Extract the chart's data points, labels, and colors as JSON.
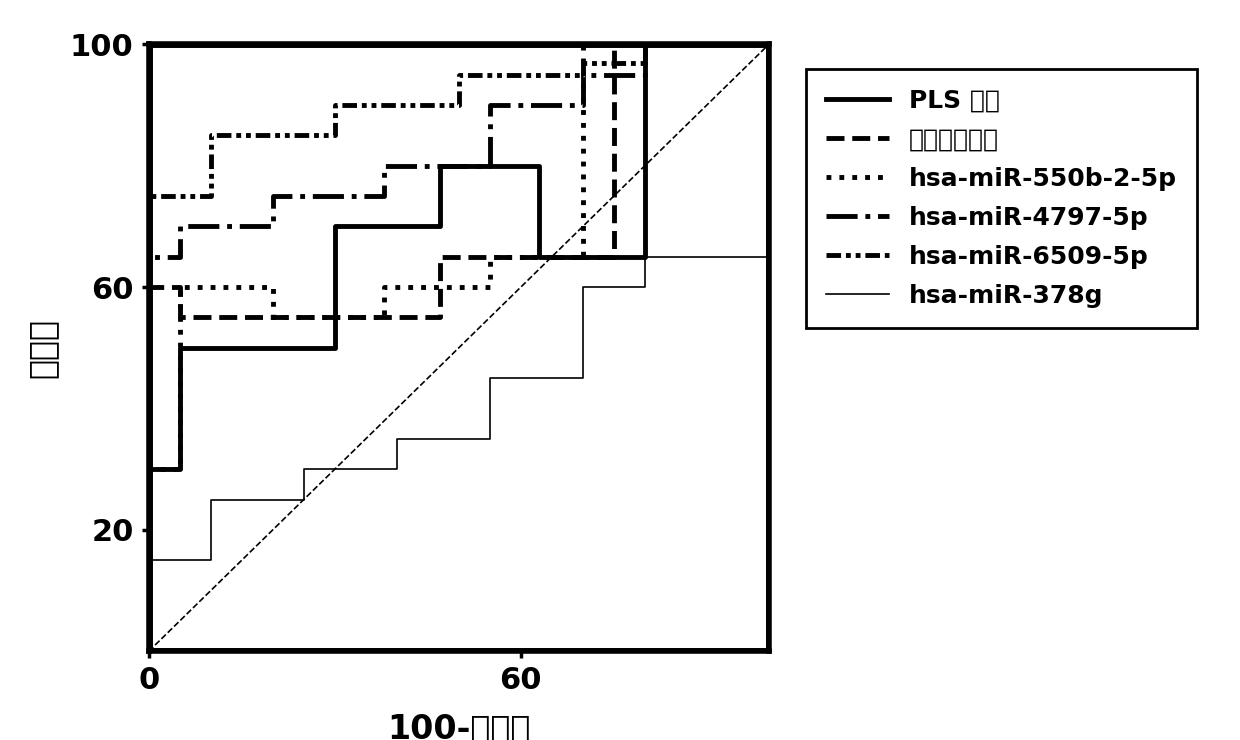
{
  "title": "",
  "xlabel": "100-特异性",
  "ylabel": "敏感性",
  "xlim": [
    0,
    100
  ],
  "ylim": [
    0,
    100
  ],
  "xticks": [
    0,
    60
  ],
  "yticks": [
    20,
    60,
    100
  ],
  "background_color": "#ffffff",
  "diagonal": {
    "x": [
      0,
      100
    ],
    "y": [
      0,
      100
    ],
    "linestyle": "--",
    "color": "black",
    "linewidth": 1.2
  },
  "curves": [
    {
      "label": "PLS 模型",
      "linestyle": "solid",
      "linewidth": 3.5,
      "color": "black",
      "x": [
        0,
        0,
        5,
        5,
        30,
        30,
        47,
        47,
        63,
        63,
        80,
        80,
        100
      ],
      "y": [
        0,
        30,
        30,
        50,
        50,
        70,
        70,
        80,
        80,
        65,
        65,
        100,
        100
      ]
    },
    {
      "label": "表达量平均值",
      "linestyle": "dashed",
      "linewidth": 3.5,
      "color": "black",
      "x": [
        0,
        0,
        5,
        5,
        30,
        30,
        47,
        47,
        75,
        75,
        100
      ],
      "y": [
        0,
        60,
        60,
        55,
        55,
        55,
        55,
        65,
        65,
        100,
        100
      ]
    },
    {
      "label": "hsa-miR-550b-2-5p",
      "linestyle": "dotted",
      "linewidth": 3.5,
      "color": "black",
      "x": [
        0,
        0,
        5,
        5,
        20,
        20,
        38,
        38,
        55,
        55,
        70,
        70,
        100
      ],
      "y": [
        0,
        30,
        30,
        60,
        60,
        55,
        55,
        60,
        60,
        65,
        65,
        100,
        100
      ]
    },
    {
      "label": "hsa-miR-4797-5p",
      "linestyle": "dashdot",
      "linewidth": 3.5,
      "color": "black",
      "x": [
        0,
        0,
        5,
        5,
        20,
        20,
        38,
        38,
        55,
        55,
        70,
        70,
        80,
        80,
        100
      ],
      "y": [
        0,
        65,
        65,
        70,
        70,
        75,
        75,
        80,
        80,
        90,
        90,
        95,
        95,
        100,
        100
      ]
    },
    {
      "label": "hsa-miR-6509-5p",
      "linestyle": "densely dashdotdotted",
      "linewidth": 3.5,
      "color": "black",
      "x": [
        0,
        0,
        10,
        10,
        30,
        30,
        50,
        50,
        70,
        70,
        80,
        80,
        100
      ],
      "y": [
        0,
        75,
        75,
        85,
        85,
        90,
        90,
        95,
        95,
        97,
        97,
        100,
        100
      ]
    },
    {
      "label": "hsa-miR-378g",
      "linestyle": "solid",
      "linewidth": 1.2,
      "color": "black",
      "x": [
        0,
        0,
        10,
        10,
        25,
        25,
        40,
        40,
        55,
        55,
        70,
        70,
        80,
        80,
        100
      ],
      "y": [
        0,
        15,
        15,
        25,
        25,
        30,
        30,
        35,
        35,
        45,
        45,
        60,
        60,
        65,
        65
      ]
    }
  ],
  "legend_labels": [
    "PLS 模型",
    "表达量平均值",
    "hsa-miR-550b-2-5p",
    "hsa-miR-4797-5p",
    "hsa-miR-6509-5p",
    "hsa-miR-378g"
  ],
  "font_size_ticks": 22,
  "font_size_labels": 24,
  "font_size_legend": 18,
  "spine_linewidth": 4,
  "outer_border_linewidth": 5
}
